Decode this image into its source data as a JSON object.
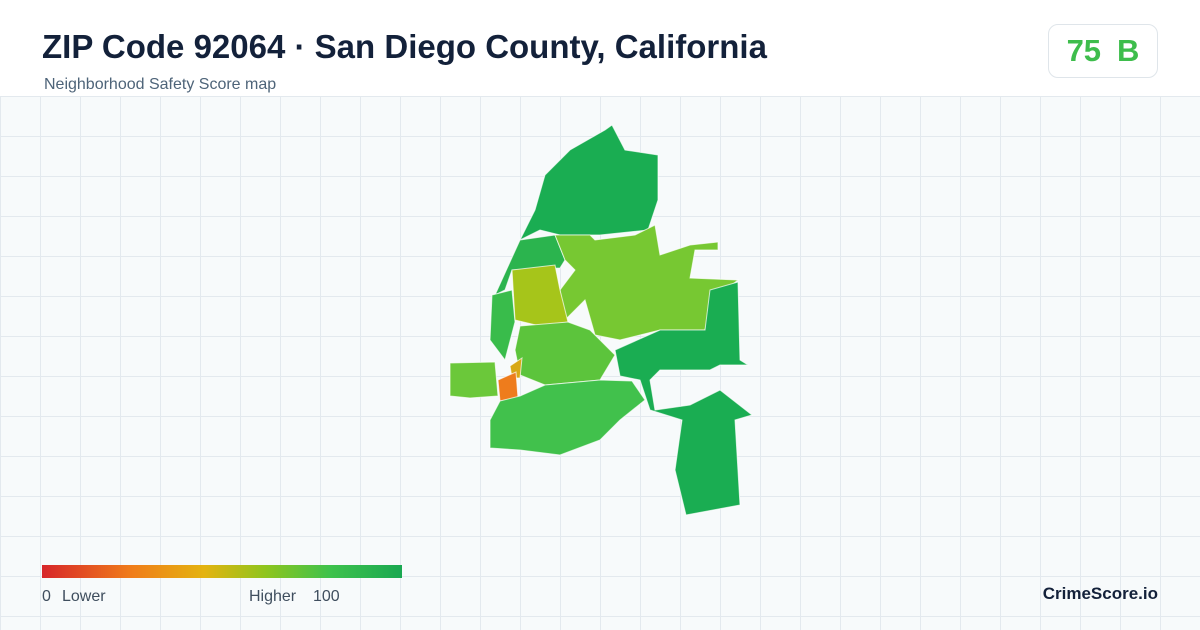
{
  "header": {
    "title": "ZIP Code 92064 · San Diego County, California",
    "subtitle": "Neighborhood Safety Score map"
  },
  "score": {
    "value": "75",
    "grade": "B"
  },
  "legend": {
    "min": "0",
    "min_label": "Lower",
    "max_label": "Higher",
    "max": "100"
  },
  "brand": "CrimeScore.io"
}
